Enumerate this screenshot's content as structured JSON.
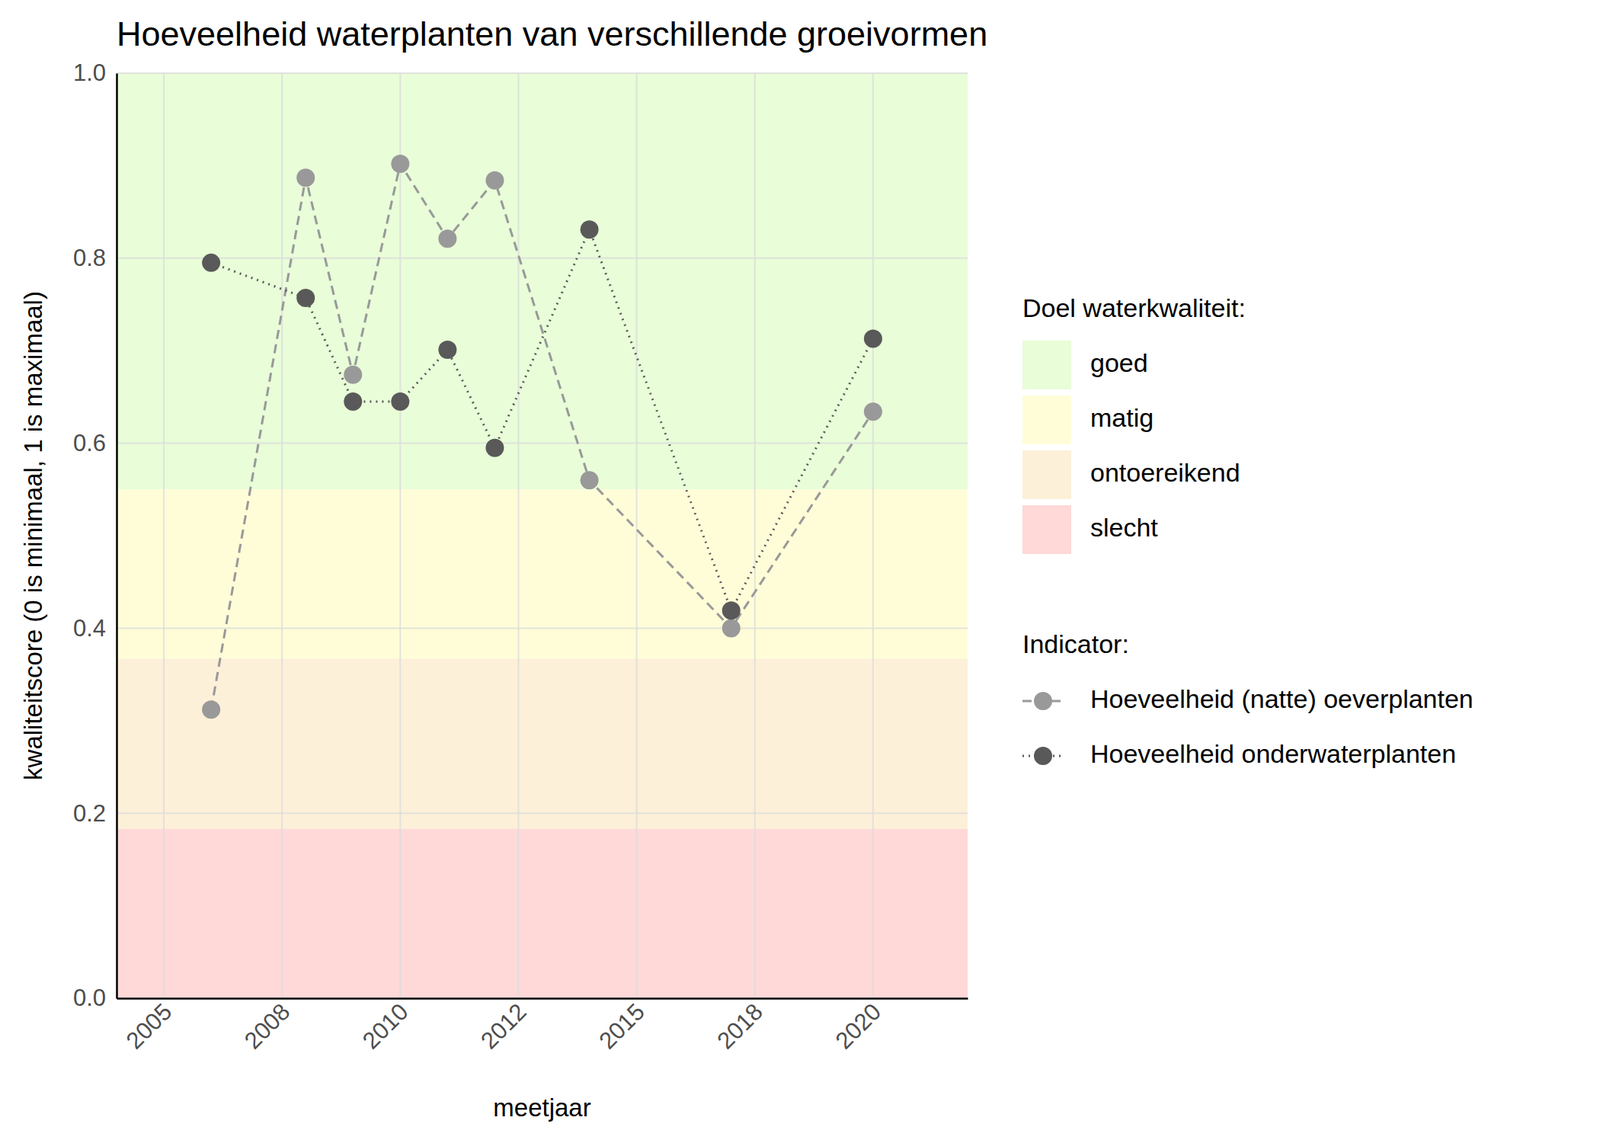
{
  "chart_data": {
    "type": "line",
    "title": "Hoeveelheid waterplanten van verschillende groeivormen",
    "x_label": "meetjaar",
    "y_label": "kwaliteitscore (0 is minimaal, 1 is maximaal)",
    "x": [
      2006,
      2008,
      2009,
      2010,
      2011,
      2012,
      2014,
      2017,
      2020
    ],
    "xlim": [
      2004,
      2022
    ],
    "xticks": [
      2005,
      {
        "value": 2007.5,
        "label": "2008"
      },
      2010,
      {
        "value": 2012.5,
        "label": "2012"
      },
      2015,
      {
        "value": 2017.5,
        "label": "2018"
      },
      2020
    ],
    "ylim": [
      0,
      1
    ],
    "yticks": [
      {
        "value": 0,
        "label": "0.0"
      },
      0.2,
      0.4,
      0.6,
      0.8,
      {
        "value": 1,
        "label": "1.0"
      }
    ],
    "grid": true,
    "bands_title": "Doel waterkwaliteit:",
    "bands": [
      {
        "name": "goed",
        "color": "#e8fdd8",
        "from": 0.55,
        "to": 1
      },
      {
        "name": "matig",
        "color": "#fffdd8",
        "from": 0.367,
        "to": 0.55
      },
      {
        "name": "ontoereikend",
        "color": "#fdf0d8",
        "from": 0.183,
        "to": 0.367
      },
      {
        "name": "slecht",
        "color": "#ffd8d8",
        "from": 0,
        "to": 0.183
      }
    ],
    "legend_title": "Indicator:",
    "series": [
      {
        "name": "Hoeveelheid (natte) oeverplanten",
        "color": "#999999",
        "marker": "circle",
        "line_style": "dashed",
        "values": [
          0.312,
          0.887,
          0.674,
          0.902,
          0.821,
          0.884,
          0.56,
          0.4,
          0.634
        ]
      },
      {
        "name": "Hoeveelheid onderwaterplanten",
        "color": "#595959",
        "marker": "circle",
        "line_style": "dotted",
        "values": [
          0.795,
          0.757,
          0.645,
          0.645,
          0.701,
          0.595,
          0.831,
          0.419,
          0.713
        ]
      }
    ]
  }
}
